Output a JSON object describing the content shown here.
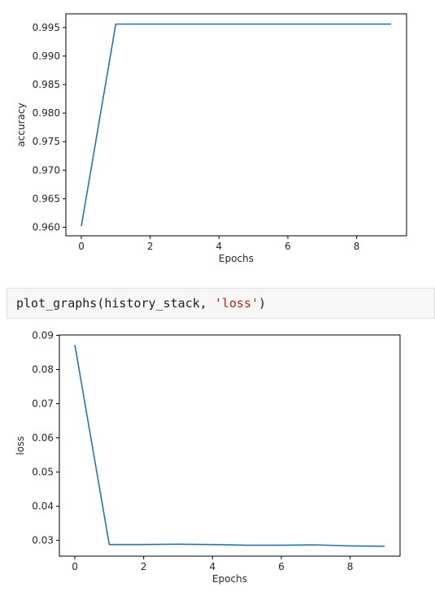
{
  "cell": {
    "code_prefix": "plot_graphs(history_stack, ",
    "code_string": "'loss'",
    "code_suffix": ")"
  },
  "colors": {
    "line": "#1f77b4"
  },
  "chart_data": [
    {
      "type": "line",
      "xlabel": "Epochs",
      "ylabel": "accuracy",
      "x": [
        0,
        1,
        2,
        3,
        4,
        5,
        6,
        7,
        8,
        9
      ],
      "series": [
        {
          "values": [
            0.9602,
            0.9956,
            0.9956,
            0.9956,
            0.9956,
            0.9956,
            0.9956,
            0.9956,
            0.9956,
            0.9956
          ]
        }
      ],
      "xticks": [
        "0",
        "2",
        "4",
        "6",
        "8"
      ],
      "yticks": [
        "0.960",
        "0.965",
        "0.970",
        "0.975",
        "0.980",
        "0.985",
        "0.990",
        "0.995"
      ],
      "ylim": [
        0.9585,
        0.9974
      ],
      "xlim": [
        -0.45,
        9.45
      ],
      "grid": false
    },
    {
      "type": "line",
      "xlabel": "Epochs",
      "ylabel": "loss",
      "x": [
        0,
        1,
        2,
        3,
        4,
        5,
        6,
        7,
        8,
        9
      ],
      "series": [
        {
          "values": [
            0.0872,
            0.0288,
            0.0288,
            0.0289,
            0.0288,
            0.0286,
            0.0286,
            0.0287,
            0.0284,
            0.0283
          ]
        }
      ],
      "xticks": [
        "0",
        "2",
        "4",
        "6",
        "8"
      ],
      "yticks": [
        "0.03",
        "0.04",
        "0.05",
        "0.06",
        "0.07",
        "0.08",
        "0.09"
      ],
      "ylim": [
        0.0254,
        0.0901
      ],
      "xlim": [
        -0.45,
        9.45
      ],
      "grid": false
    }
  ]
}
